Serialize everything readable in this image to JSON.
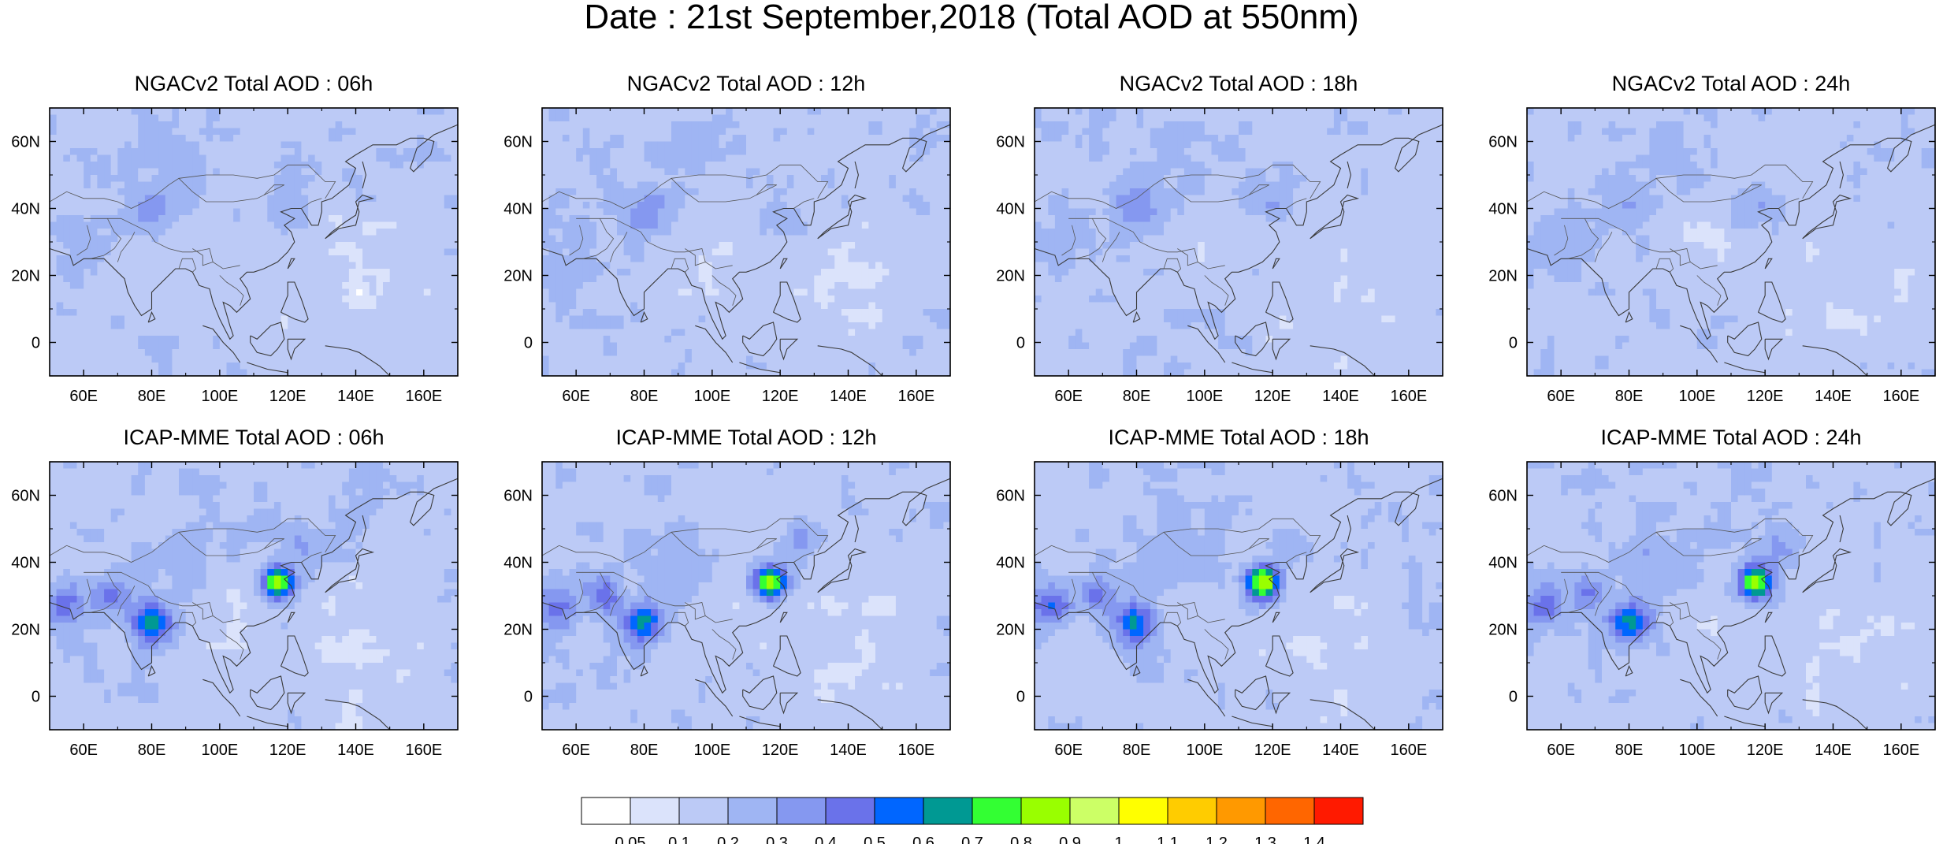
{
  "title": "Date : 21st September,2018 (Total AOD at 550nm)",
  "panels": [
    {
      "title": "NGACv2 Total AOD : 06h",
      "model": "NGACv2",
      "lead": "06h"
    },
    {
      "title": "NGACv2 Total AOD : 12h",
      "model": "NGACv2",
      "lead": "12h"
    },
    {
      "title": "NGACv2 Total AOD : 18h",
      "model": "NGACv2",
      "lead": "18h"
    },
    {
      "title": "NGACv2 Total AOD : 24h",
      "model": "NGACv2",
      "lead": "24h"
    },
    {
      "title": "ICAP-MME Total AOD : 06h",
      "model": "ICAP-MME",
      "lead": "06h"
    },
    {
      "title": "ICAP-MME Total AOD : 12h",
      "model": "ICAP-MME",
      "lead": "12h"
    },
    {
      "title": "ICAP-MME Total AOD : 18h",
      "model": "ICAP-MME",
      "lead": "18h"
    },
    {
      "title": "ICAP-MME Total AOD : 24h",
      "model": "ICAP-MME",
      "lead": "24h"
    }
  ],
  "axes": {
    "lon_range": [
      50,
      170
    ],
    "lat_range": [
      -10,
      70
    ],
    "lon_ticks": [
      {
        "value": 60,
        "label": "60E"
      },
      {
        "value": 80,
        "label": "80E"
      },
      {
        "value": 100,
        "label": "100E"
      },
      {
        "value": 120,
        "label": "120E"
      },
      {
        "value": 140,
        "label": "140E"
      },
      {
        "value": 160,
        "label": "160E"
      }
    ],
    "lat_ticks": [
      {
        "value": 0,
        "label": "0"
      },
      {
        "value": 20,
        "label": "20N"
      },
      {
        "value": 40,
        "label": "40N"
      },
      {
        "value": 60,
        "label": "60N"
      }
    ]
  },
  "colorbar": {
    "labels": [
      "0.05",
      "0.1",
      "0.2",
      "0.3",
      "0.4",
      "0.5",
      "0.6",
      "0.7",
      "0.8",
      "0.9",
      "1",
      "1.1",
      "1.2",
      "1.3",
      "1.4"
    ],
    "colors": [
      "#ffffff",
      "#dbe3fb",
      "#bccaf6",
      "#9fb5f3",
      "#8598f0",
      "#6a72ea",
      "#0066ff",
      "#009993",
      "#33ff33",
      "#99ff00",
      "#ccff66",
      "#ffff00",
      "#ffcc00",
      "#ff9900",
      "#ff6600",
      "#ff1a00"
    ]
  }
}
